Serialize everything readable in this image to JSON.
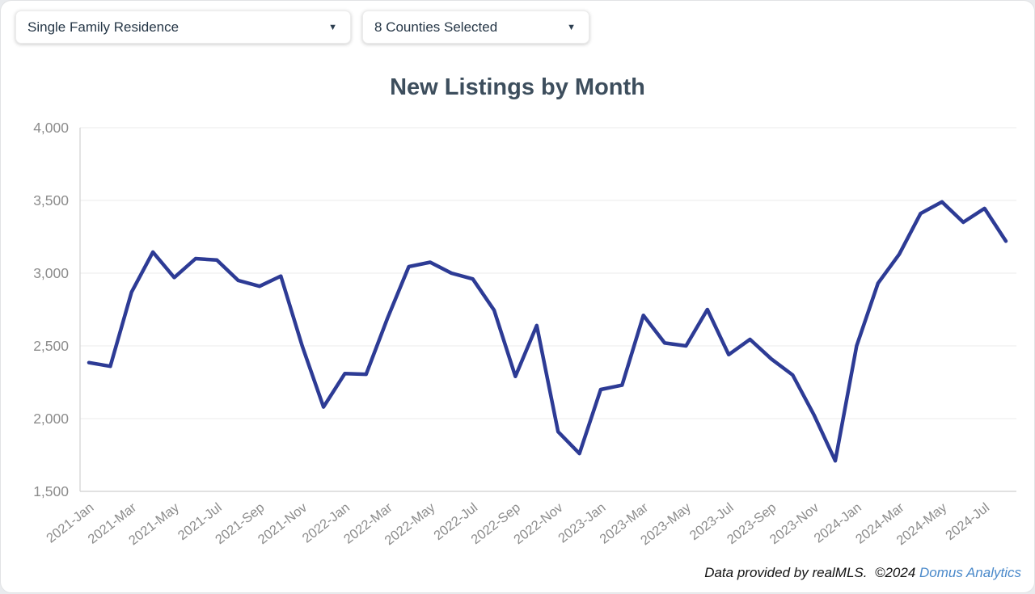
{
  "filters": {
    "property_type": {
      "value": "Single Family Residence"
    },
    "counties": {
      "value": "8 Counties Selected"
    }
  },
  "chart_data": {
    "type": "line",
    "title": "New Listings by Month",
    "xlabel": "",
    "ylabel": "",
    "ylim": [
      1500,
      4000
    ],
    "ytick_step": 500,
    "ytick_labels": [
      "1,500",
      "2,000",
      "2,500",
      "3,000",
      "3,500",
      "4,000"
    ],
    "xtick_interval": 2,
    "grid": "horizontal",
    "legend_position": "none",
    "line_color": "#2d3b95",
    "categories": [
      "2021-Jan",
      "2021-Feb",
      "2021-Mar",
      "2021-Apr",
      "2021-May",
      "2021-Jun",
      "2021-Jul",
      "2021-Aug",
      "2021-Sep",
      "2021-Oct",
      "2021-Nov",
      "2021-Dec",
      "2022-Jan",
      "2022-Feb",
      "2022-Mar",
      "2022-Apr",
      "2022-May",
      "2022-Jun",
      "2022-Jul",
      "2022-Aug",
      "2022-Sep",
      "2022-Oct",
      "2022-Nov",
      "2022-Dec",
      "2023-Jan",
      "2023-Feb",
      "2023-Mar",
      "2023-Apr",
      "2023-May",
      "2023-Jun",
      "2023-Jul",
      "2023-Aug",
      "2023-Sep",
      "2023-Oct",
      "2023-Nov",
      "2023-Dec",
      "2024-Jan",
      "2024-Feb",
      "2024-Mar",
      "2024-Apr",
      "2024-May",
      "2024-Jun",
      "2024-Jul",
      "2024-Aug"
    ],
    "series": [
      {
        "name": "New Listings",
        "values": [
          2385,
          2360,
          2870,
          3145,
          2970,
          3100,
          3090,
          2950,
          2910,
          2980,
          2500,
          2080,
          2310,
          2305,
          2690,
          3045,
          3075,
          3000,
          2960,
          2745,
          2290,
          2640,
          1910,
          1760,
          2200,
          2230,
          2710,
          2520,
          2500,
          2750,
          2440,
          2545,
          2410,
          2300,
          2025,
          1710,
          2500,
          2930,
          3130,
          3410,
          3490,
          3350,
          3445,
          3220
        ]
      }
    ]
  },
  "footer": {
    "credit": "Data provided by realMLS.",
    "copyright": "©2024",
    "brand_link": "Domus Analytics"
  },
  "colors": {
    "line": "#2d3b95",
    "title": "#3d4e5d",
    "axis_text": "#8c8c8c",
    "grid_line": "#efefef",
    "axis_line": "#d7d7d7",
    "link": "#4a89ca"
  }
}
